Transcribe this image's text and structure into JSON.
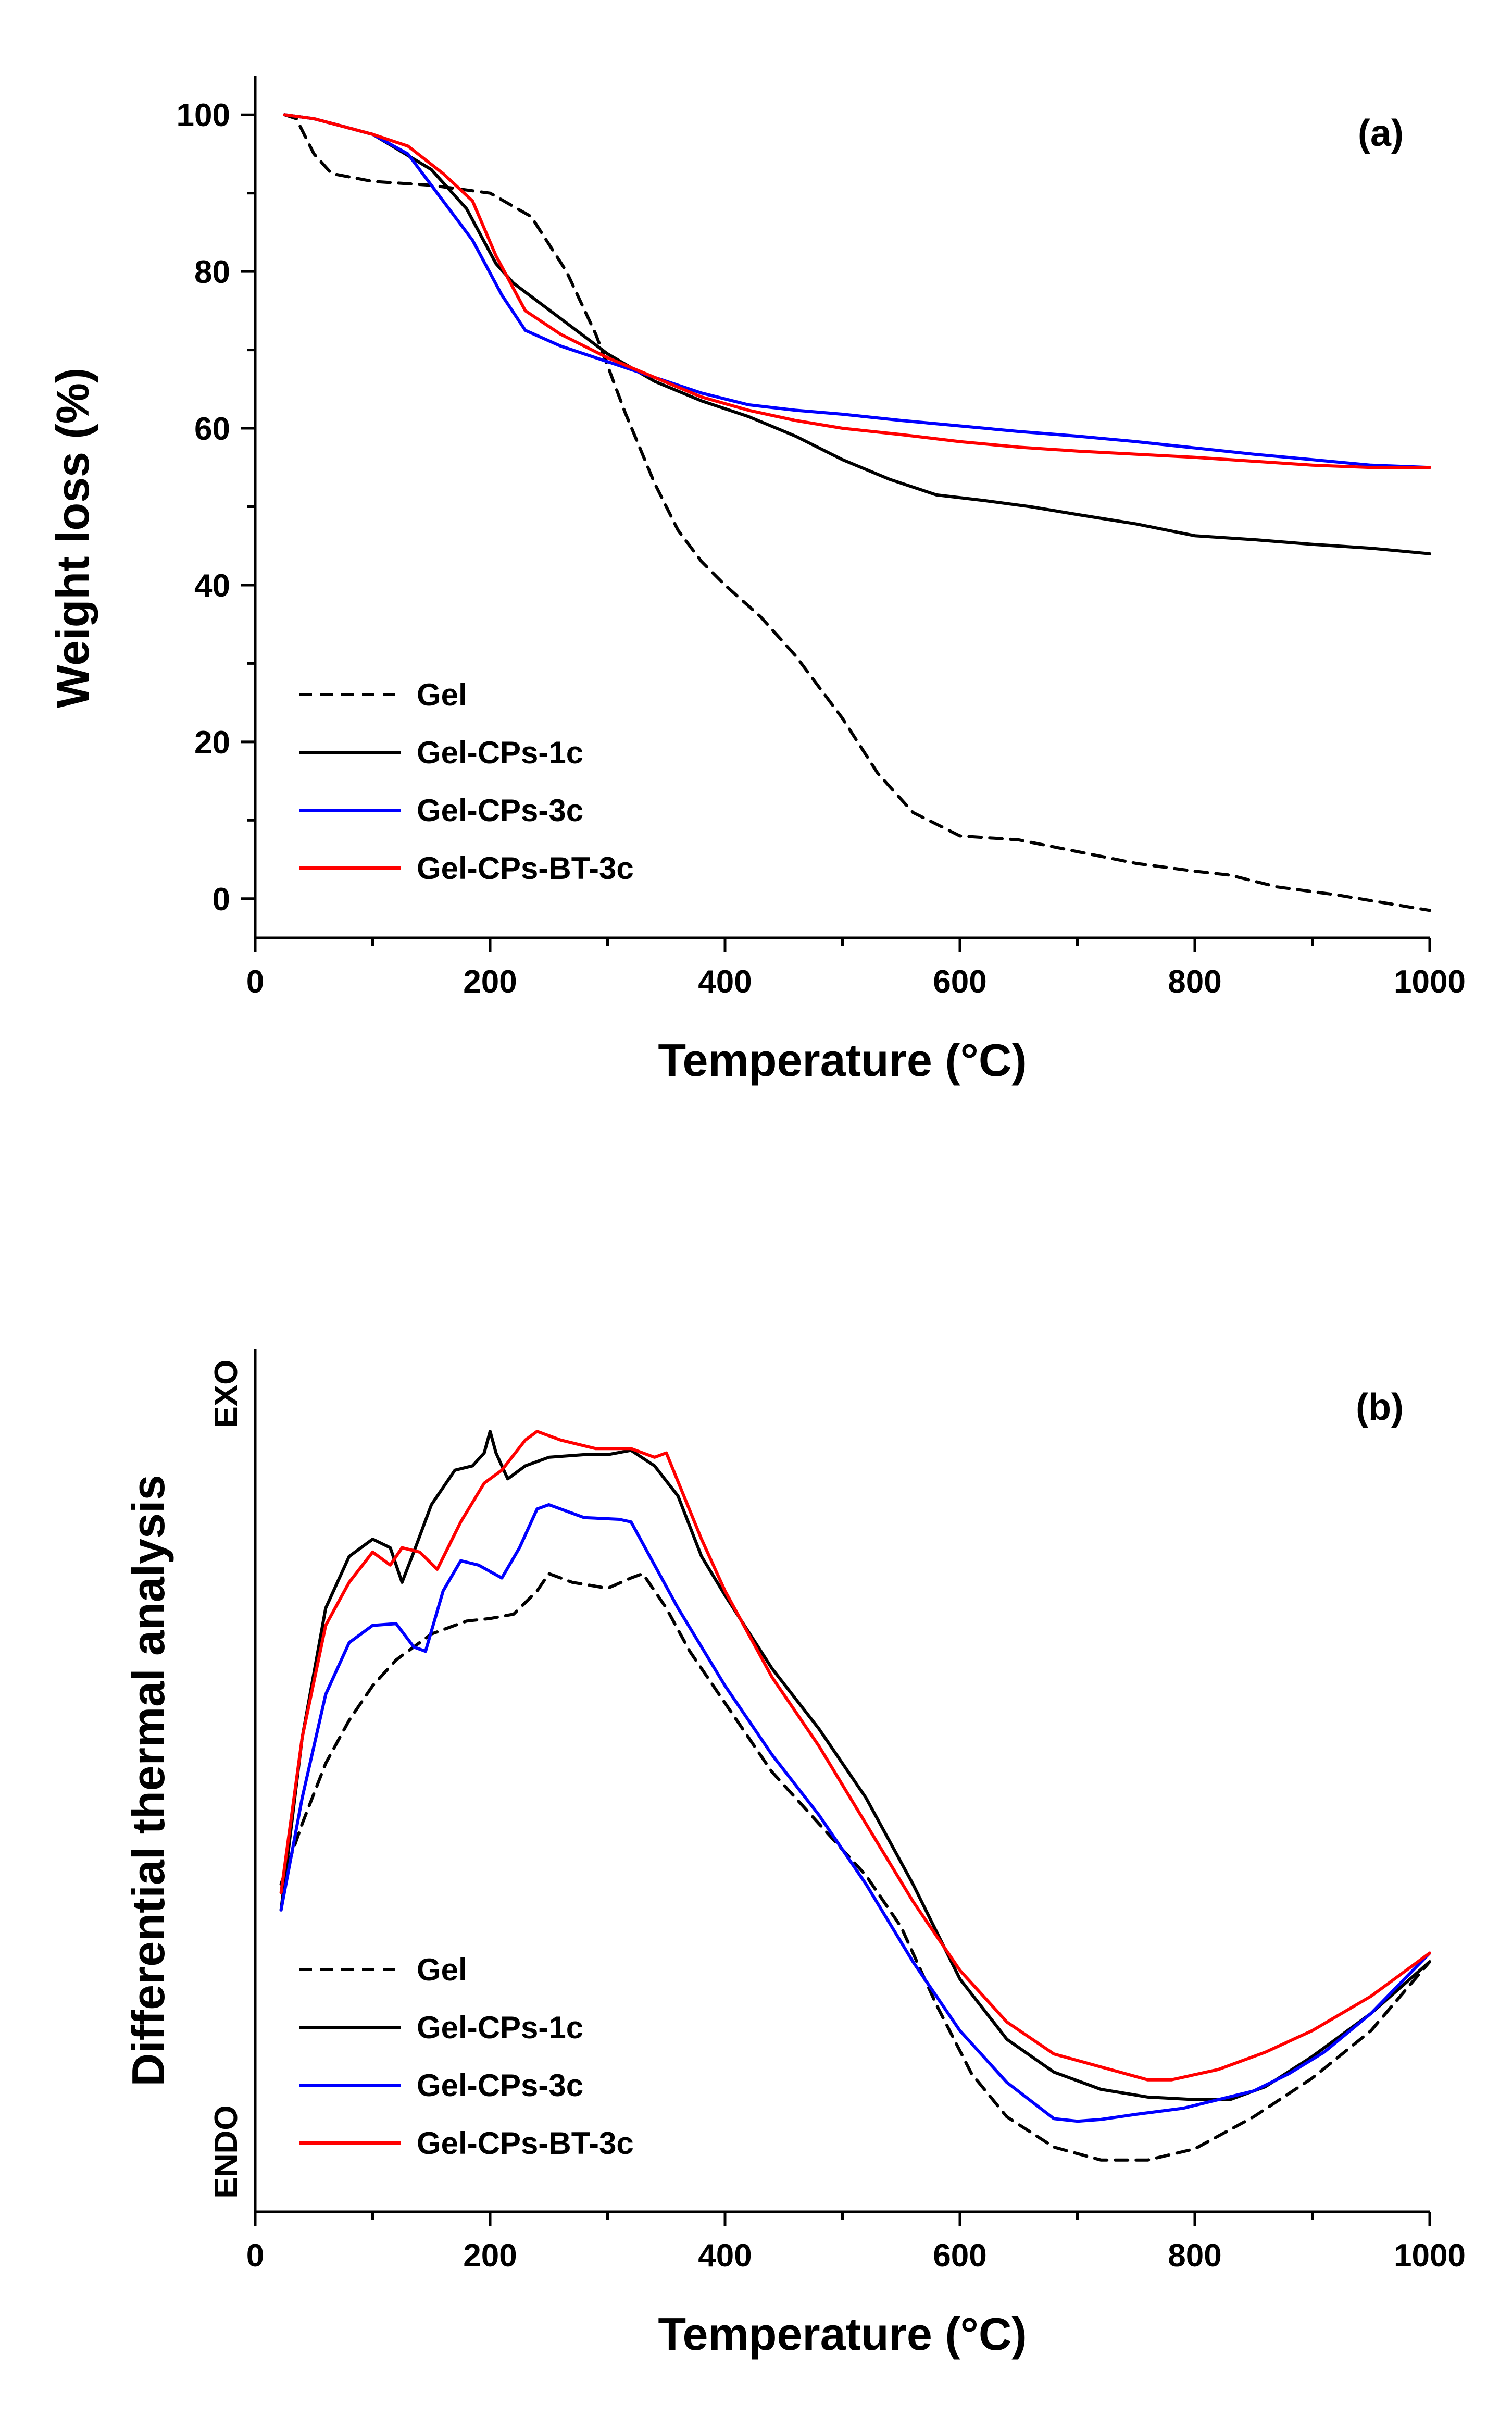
{
  "chart_data": [
    {
      "type": "line",
      "panel_label": "(a)",
      "xlabel": "Temperature (°C)",
      "ylabel": "Weight loss (%)",
      "xlim": [
        0,
        1000
      ],
      "ylim": [
        -5,
        105
      ],
      "xticks": [
        "0",
        "200",
        "400",
        "600",
        "800",
        "1000"
      ],
      "yticks": [
        "0",
        "20",
        "40",
        "60",
        "80",
        "100"
      ],
      "legend_position": "bottom-left",
      "series": [
        {
          "name": "Gel",
          "color": "#000000",
          "dash": "dashed",
          "points": [
            [
              25,
              100
            ],
            [
              35,
              99.5
            ],
            [
              50,
              95
            ],
            [
              65,
              92.5
            ],
            [
              100,
              91.5
            ],
            [
              150,
              91
            ],
            [
              200,
              90
            ],
            [
              235,
              87
            ],
            [
              265,
              80
            ],
            [
              290,
              72
            ],
            [
              315,
              62
            ],
            [
              340,
              53
            ],
            [
              360,
              47
            ],
            [
              380,
              43
            ],
            [
              400,
              40
            ],
            [
              430,
              36
            ],
            [
              460,
              31
            ],
            [
              500,
              23
            ],
            [
              530,
              16
            ],
            [
              560,
              11
            ],
            [
              600,
              8
            ],
            [
              650,
              7.5
            ],
            [
              700,
              6
            ],
            [
              750,
              4.5
            ],
            [
              800,
              3.5
            ],
            [
              830,
              3
            ],
            [
              870,
              1.5
            ],
            [
              920,
              0.5
            ],
            [
              960,
              -0.5
            ],
            [
              1000,
              -1.5
            ]
          ]
        },
        {
          "name": "Gel-CPs-1c",
          "color": "#000000",
          "dash": "solid",
          "points": [
            [
              25,
              100
            ],
            [
              50,
              99.5
            ],
            [
              100,
              97.5
            ],
            [
              150,
              93
            ],
            [
              180,
              88
            ],
            [
              205,
              81
            ],
            [
              220,
              78.5
            ],
            [
              260,
              74
            ],
            [
              300,
              69.5
            ],
            [
              340,
              66
            ],
            [
              380,
              63.5
            ],
            [
              420,
              61.5
            ],
            [
              460,
              59
            ],
            [
              500,
              56
            ],
            [
              540,
              53.5
            ],
            [
              580,
              51.5
            ],
            [
              620,
              50.8
            ],
            [
              660,
              50
            ],
            [
              700,
              49
            ],
            [
              750,
              47.8
            ],
            [
              800,
              46.3
            ],
            [
              850,
              45.8
            ],
            [
              900,
              45.2
            ],
            [
              950,
              44.7
            ],
            [
              1000,
              44
            ]
          ]
        },
        {
          "name": "Gel-CPs-3c",
          "color": "#0000ff",
          "dash": "solid",
          "points": [
            [
              25,
              100
            ],
            [
              50,
              99.5
            ],
            [
              100,
              97.5
            ],
            [
              130,
              95
            ],
            [
              155,
              90
            ],
            [
              185,
              84
            ],
            [
              210,
              77
            ],
            [
              230,
              72.5
            ],
            [
              260,
              70.5
            ],
            [
              300,
              68.5
            ],
            [
              340,
              66.5
            ],
            [
              380,
              64.5
            ],
            [
              420,
              63
            ],
            [
              460,
              62.3
            ],
            [
              500,
              61.8
            ],
            [
              550,
              61
            ],
            [
              600,
              60.3
            ],
            [
              650,
              59.6
            ],
            [
              700,
              59
            ],
            [
              750,
              58.3
            ],
            [
              800,
              57.5
            ],
            [
              850,
              56.7
            ],
            [
              900,
              56
            ],
            [
              950,
              55.3
            ],
            [
              1000,
              55
            ]
          ]
        },
        {
          "name": "Gel-CPs-BT-3c",
          "color": "#ff0000",
          "dash": "solid",
          "points": [
            [
              25,
              100
            ],
            [
              50,
              99.5
            ],
            [
              100,
              97.5
            ],
            [
              130,
              96
            ],
            [
              160,
              92.5
            ],
            [
              185,
              89
            ],
            [
              205,
              82
            ],
            [
              230,
              75
            ],
            [
              260,
              72
            ],
            [
              300,
              69
            ],
            [
              340,
              66.5
            ],
            [
              380,
              64
            ],
            [
              420,
              62.3
            ],
            [
              460,
              61
            ],
            [
              500,
              60
            ],
            [
              550,
              59.2
            ],
            [
              600,
              58.3
            ],
            [
              650,
              57.6
            ],
            [
              700,
              57.1
            ],
            [
              750,
              56.7
            ],
            [
              800,
              56.3
            ],
            [
              850,
              55.8
            ],
            [
              900,
              55.3
            ],
            [
              950,
              55
            ],
            [
              1000,
              55
            ]
          ]
        }
      ]
    },
    {
      "type": "line",
      "panel_label": "(b)",
      "xlabel": "Temperature (°C)",
      "ylabel": "Differential thermal analysis",
      "y_top_label": "EXO",
      "y_bottom_label": "ENDO",
      "xlim": [
        0,
        1000
      ],
      "ylim": [
        0,
        100
      ],
      "xticks": [
        "0",
        "200",
        "400",
        "600",
        "800",
        "1000"
      ],
      "legend_position": "bottom-left",
      "series": [
        {
          "name": "Gel",
          "color": "#000000",
          "dash": "dashed",
          "points": [
            [
              22,
              38
            ],
            [
              40,
              45
            ],
            [
              60,
              52
            ],
            [
              80,
              57
            ],
            [
              100,
              61
            ],
            [
              120,
              64
            ],
            [
              150,
              67
            ],
            [
              180,
              68.5
            ],
            [
              200,
              68.8
            ],
            [
              220,
              69.3
            ],
            [
              240,
              72
            ],
            [
              250,
              74
            ],
            [
              270,
              73
            ],
            [
              300,
              72.3
            ],
            [
              320,
              73.5
            ],
            [
              330,
              74
            ],
            [
              350,
              70
            ],
            [
              370,
              65
            ],
            [
              400,
              59
            ],
            [
              440,
              51
            ],
            [
              480,
              45
            ],
            [
              520,
              39
            ],
            [
              550,
              33
            ],
            [
              580,
              24
            ],
            [
              610,
              16
            ],
            [
              640,
              11
            ],
            [
              680,
              7.5
            ],
            [
              720,
              6
            ],
            [
              760,
              6
            ],
            [
              800,
              7.3
            ],
            [
              850,
              11
            ],
            [
              900,
              15.5
            ],
            [
              950,
              21
            ],
            [
              1000,
              29
            ]
          ]
        },
        {
          "name": "Gel-CPs-1c",
          "color": "#000000",
          "dash": "solid",
          "points": [
            [
              22,
              35
            ],
            [
              40,
              55
            ],
            [
              60,
              70
            ],
            [
              80,
              76
            ],
            [
              100,
              78
            ],
            [
              115,
              77
            ],
            [
              125,
              73
            ],
            [
              135,
              76.5
            ],
            [
              150,
              82
            ],
            [
              170,
              86
            ],
            [
              185,
              86.5
            ],
            [
              195,
              88
            ],
            [
              200,
              90.5
            ],
            [
              205,
              88
            ],
            [
              215,
              85
            ],
            [
              230,
              86.5
            ],
            [
              250,
              87.5
            ],
            [
              280,
              87.8
            ],
            [
              300,
              87.8
            ],
            [
              320,
              88.3
            ],
            [
              340,
              86.5
            ],
            [
              360,
              83
            ],
            [
              380,
              76
            ],
            [
              400,
              71.5
            ],
            [
              440,
              63
            ],
            [
              480,
              56
            ],
            [
              520,
              48
            ],
            [
              560,
              38
            ],
            [
              600,
              27
            ],
            [
              640,
              20
            ],
            [
              680,
              16.2
            ],
            [
              720,
              14.2
            ],
            [
              760,
              13.3
            ],
            [
              800,
              13
            ],
            [
              830,
              13
            ],
            [
              860,
              14.5
            ],
            [
              900,
              18
            ],
            [
              950,
              23
            ],
            [
              1000,
              29
            ]
          ]
        },
        {
          "name": "Gel-CPs-3c",
          "color": "#0000ff",
          "dash": "solid",
          "points": [
            [
              22,
              35
            ],
            [
              40,
              48
            ],
            [
              60,
              60
            ],
            [
              80,
              66
            ],
            [
              100,
              68
            ],
            [
              120,
              68.2
            ],
            [
              135,
              65.5
            ],
            [
              145,
              65
            ],
            [
              160,
              72
            ],
            [
              175,
              75.5
            ],
            [
              190,
              75
            ],
            [
              210,
              73.5
            ],
            [
              225,
              77
            ],
            [
              240,
              81.5
            ],
            [
              250,
              82
            ],
            [
              280,
              80.5
            ],
            [
              310,
              80.3
            ],
            [
              320,
              80
            ],
            [
              340,
              75
            ],
            [
              360,
              70
            ],
            [
              400,
              61
            ],
            [
              440,
              53
            ],
            [
              480,
              46
            ],
            [
              520,
              38
            ],
            [
              560,
              29
            ],
            [
              600,
              21
            ],
            [
              640,
              15
            ],
            [
              680,
              10.8
            ],
            [
              700,
              10.5
            ],
            [
              720,
              10.7
            ],
            [
              750,
              11.3
            ],
            [
              790,
              12
            ],
            [
              820,
              13
            ],
            [
              850,
              14
            ],
            [
              880,
              16
            ],
            [
              910,
              18.5
            ],
            [
              950,
              23
            ],
            [
              1000,
              30
            ]
          ]
        },
        {
          "name": "Gel-CPs-BT-3c",
          "color": "#ff0000",
          "dash": "solid",
          "points": [
            [
              22,
              37
            ],
            [
              40,
              55
            ],
            [
              60,
              68
            ],
            [
              80,
              73
            ],
            [
              100,
              76.5
            ],
            [
              115,
              75
            ],
            [
              125,
              77
            ],
            [
              140,
              76.5
            ],
            [
              155,
              74.5
            ],
            [
              175,
              80
            ],
            [
              195,
              84.5
            ],
            [
              210,
              86
            ],
            [
              230,
              89.5
            ],
            [
              240,
              90.5
            ],
            [
              260,
              89.5
            ],
            [
              290,
              88.5
            ],
            [
              320,
              88.5
            ],
            [
              340,
              87.5
            ],
            [
              350,
              88
            ],
            [
              365,
              83
            ],
            [
              380,
              78
            ],
            [
              400,
              72
            ],
            [
              440,
              62
            ],
            [
              480,
              54
            ],
            [
              520,
              45
            ],
            [
              560,
              36
            ],
            [
              600,
              28
            ],
            [
              640,
              22
            ],
            [
              680,
              18.3
            ],
            [
              720,
              16.8
            ],
            [
              760,
              15.3
            ],
            [
              780,
              15.3
            ],
            [
              820,
              16.5
            ],
            [
              860,
              18.5
            ],
            [
              900,
              21
            ],
            [
              950,
              25
            ],
            [
              1000,
              30
            ]
          ]
        }
      ]
    }
  ]
}
